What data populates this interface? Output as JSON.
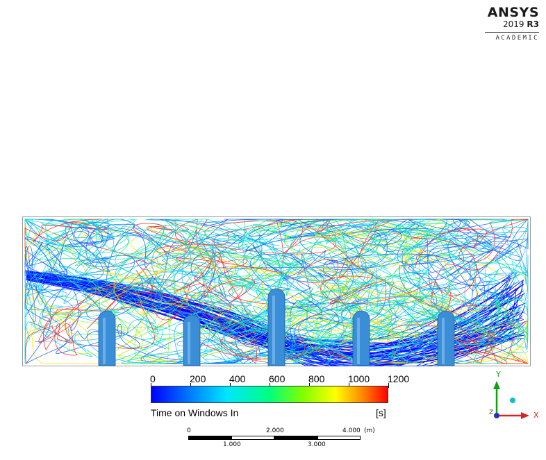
{
  "logo": {
    "brand": "ANSYS",
    "version_prefix": "2019",
    "version_suffix": "R3",
    "edition": "ACADEMIC"
  },
  "legend": {
    "ticks": [
      "0",
      "200",
      "400",
      "600",
      "800",
      "1000",
      "1200"
    ],
    "tick_values": [
      0,
      200,
      400,
      600,
      800,
      1000,
      1200
    ],
    "range": [
      0,
      1200
    ],
    "title": "Time on Windows In",
    "unit": "[s]",
    "colors": [
      "#0000ff",
      "#00e6ff",
      "#00ff80",
      "#ffff00",
      "#ff0000"
    ]
  },
  "scale_bar": {
    "top_labels": [
      "0",
      "2.000",
      "4.000"
    ],
    "top_unit": "(m)",
    "bottom_labels": [
      "1.000",
      "3.000"
    ]
  },
  "axes": {
    "x": "X",
    "y": "Y",
    "z": "Z",
    "x_color": "#e02020",
    "y_color": "#10a010",
    "z_color": "#2030c0"
  },
  "scene": {
    "stream_colors": [
      "#0000ff",
      "#1060ff",
      "#20b0ff",
      "#00e0e0",
      "#20e090",
      "#80ff20",
      "#ffe000",
      "#ff2020"
    ],
    "pillar_color": "#3a8ed8"
  }
}
